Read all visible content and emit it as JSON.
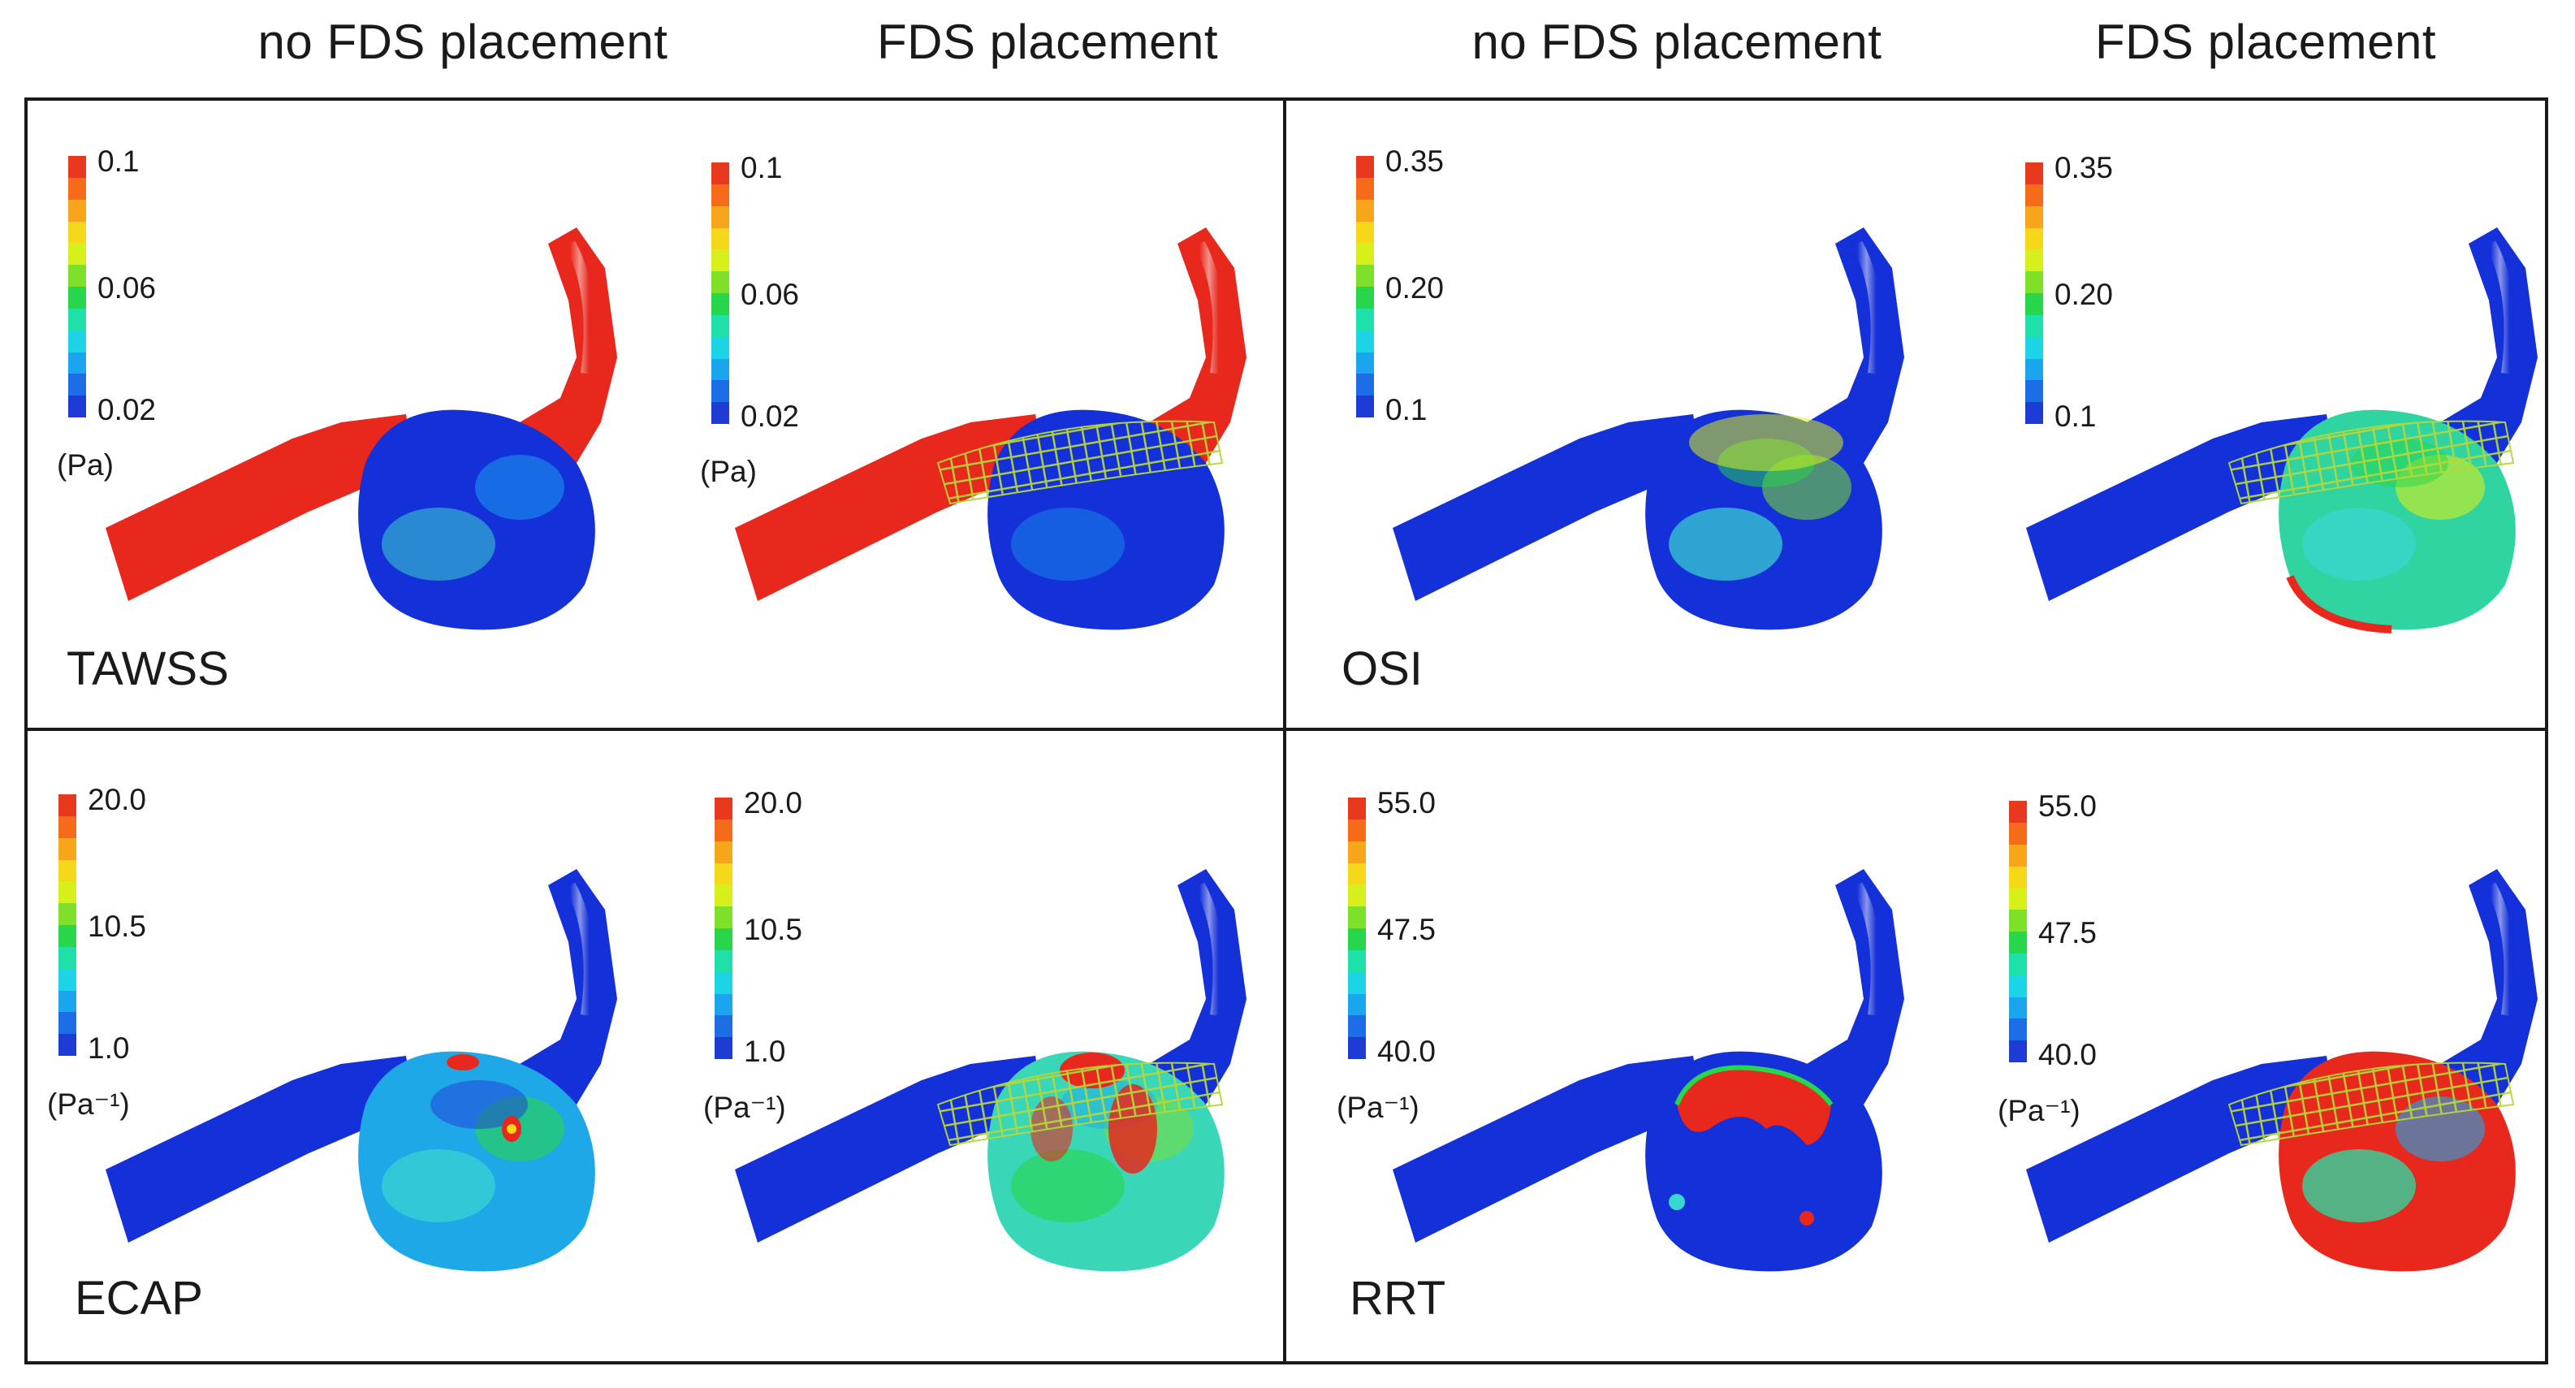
{
  "column_headers": [
    "no FDS placement",
    "FDS placement",
    "no FDS placement",
    "FDS placement"
  ],
  "colormap": [
    "#1f3bd6",
    "#1d6ee6",
    "#19a6ef",
    "#1cd4e6",
    "#1ee0a8",
    "#27d64a",
    "#7fe02a",
    "#d7ef1a",
    "#f5d81a",
    "#f7a51a",
    "#f56b1a",
    "#e8391e"
  ],
  "colors": {
    "blue": "#1430d8",
    "red": "#e8281c",
    "cyan": "#3ad6d0",
    "green": "#3ccf5a",
    "yellow": "#e6e62a",
    "mesh": "#b6d838"
  },
  "panels": [
    {
      "id": "tawss",
      "label": "TAWSS",
      "unit": "(Pa)",
      "ticks": [
        [
          "0.1",
          "0.06",
          "0.02"
        ],
        [
          "0.1",
          "0.06",
          "0.02"
        ]
      ]
    },
    {
      "id": "osi",
      "label": "OSI",
      "unit": "",
      "ticks": [
        [
          "0.35",
          "0.20",
          "0.1"
        ],
        [
          "0.35",
          "0.20",
          "0.1"
        ]
      ]
    },
    {
      "id": "ecap",
      "label": "ECAP",
      "unit": "(Pa⁻¹)",
      "ticks": [
        [
          "20.0",
          "10.5",
          "1.0"
        ],
        [
          "20.0",
          "10.5",
          "1.0"
        ]
      ]
    },
    {
      "id": "rrt",
      "label": "RRT",
      "unit": "(Pa⁻¹)",
      "ticks": [
        [
          "55.0",
          "47.5",
          "40.0"
        ],
        [
          "55.0",
          "47.5",
          "40.0"
        ]
      ]
    }
  ]
}
